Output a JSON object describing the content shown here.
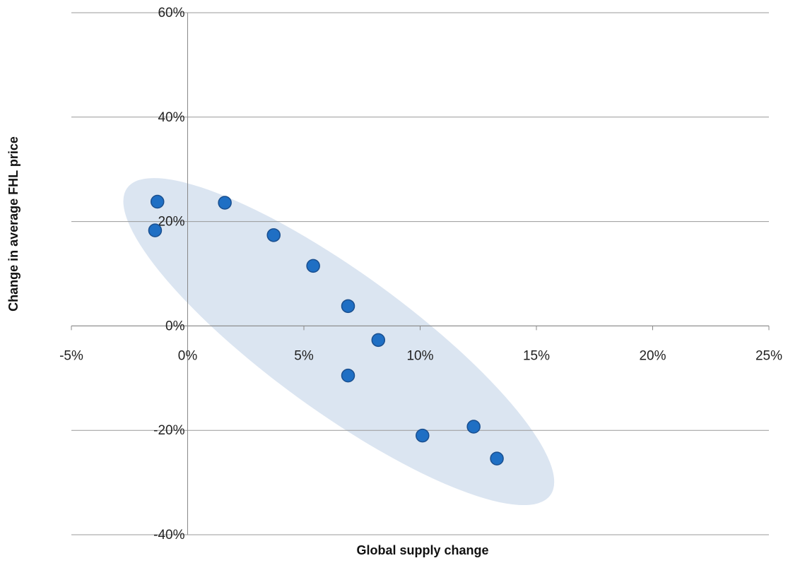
{
  "chart_data": {
    "type": "scatter",
    "title": "",
    "xlabel": "Global supply change",
    "ylabel": "Change in average FHL price",
    "xlim": [
      -0.05,
      0.25
    ],
    "ylim": [
      -0.4,
      0.6
    ],
    "x_ticks": [
      -0.05,
      0.0,
      0.05,
      0.1,
      0.15,
      0.2,
      0.25
    ],
    "x_tick_labels": [
      "-5%",
      "0%",
      "5%",
      "10%",
      "15%",
      "20%",
      "25%"
    ],
    "y_ticks": [
      -0.4,
      -0.2,
      0.0,
      0.2,
      0.4,
      0.6
    ],
    "y_tick_labels": [
      "-40%",
      "-20%",
      "0%",
      "20%",
      "40%",
      "60%"
    ],
    "grid": "horizontal",
    "legend": "none",
    "series": [
      {
        "x": [
          -0.014,
          -0.013,
          0.016,
          0.037,
          0.054,
          0.069,
          0.082,
          0.069,
          0.101,
          0.123,
          0.133
        ],
        "y": [
          0.183,
          0.238,
          0.236,
          0.174,
          0.115,
          0.038,
          -0.027,
          -0.095,
          -0.21,
          -0.193,
          -0.254
        ]
      }
    ],
    "highlight_ellipse": {
      "center": [
        0.065,
        -0.03
      ],
      "color": "#dbe5f1"
    },
    "colors": {
      "marker_fill": "#1f6fc4",
      "marker_stroke": "#1a4f8f",
      "gridline": "#999999",
      "axis": "#888888"
    }
  }
}
